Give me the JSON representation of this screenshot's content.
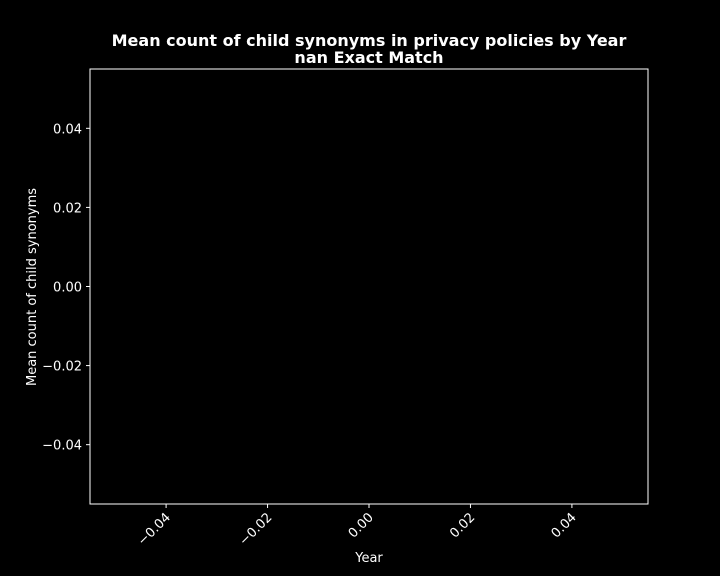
{
  "chart_data": {
    "type": "line",
    "title": "Mean count of child synonyms in privacy policies by Year",
    "subtitle": "nan Exact Match",
    "xlabel": "Year",
    "ylabel": "Mean count of child synonyms",
    "xlim": [
      -0.055,
      0.055
    ],
    "ylim": [
      -0.055,
      0.055
    ],
    "x_ticks": [
      -0.04,
      -0.02,
      0.0,
      0.02,
      0.04
    ],
    "x_tick_labels": [
      "−0.04",
      "−0.02",
      "0.00",
      "0.02",
      "0.04"
    ],
    "y_ticks": [
      0.04,
      0.02,
      0.0,
      -0.02,
      -0.04
    ],
    "y_tick_labels": [
      "0.04",
      "0.02",
      "0.00",
      "−0.02",
      "−0.04"
    ],
    "series": [],
    "grid": false,
    "legend": "none",
    "background": "#000000",
    "foreground": "#ffffff"
  }
}
